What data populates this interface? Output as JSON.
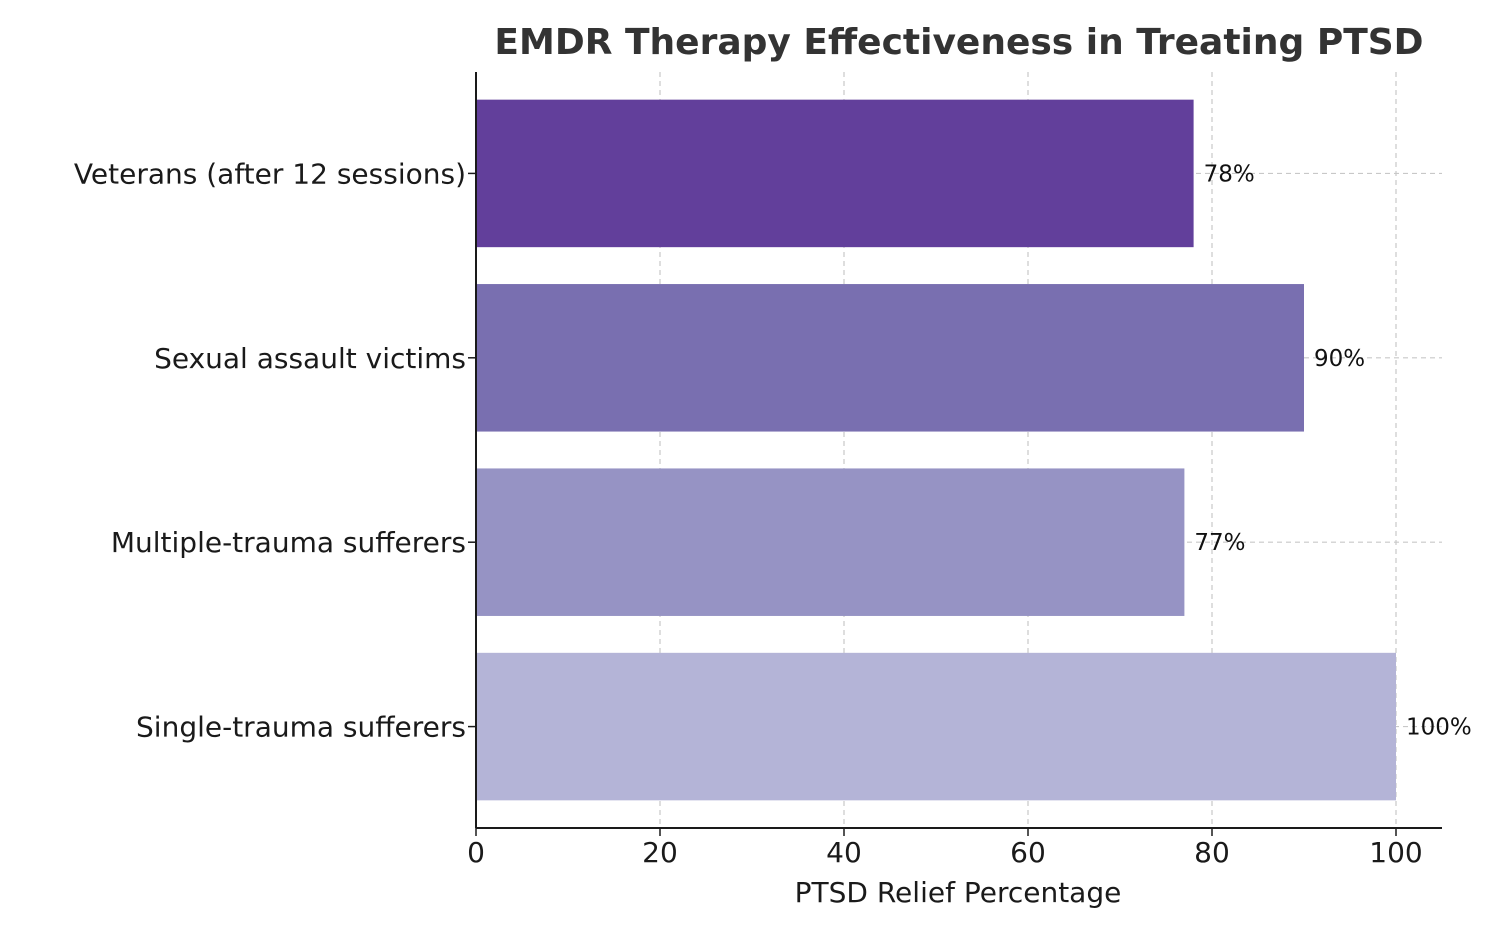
{
  "chart_data": {
    "type": "bar",
    "orientation": "horizontal",
    "title": "EMDR Therapy Effectiveness in Treating PTSD",
    "xlabel": "PTSD Relief Percentage",
    "ylabel": "",
    "xlim": [
      0,
      105
    ],
    "xticks": [
      "0",
      "20",
      "40",
      "60",
      "80",
      "100"
    ],
    "grid": true,
    "categories": [
      "Single-trauma sufferers",
      "Multiple-trauma sufferers",
      "Sexual assault victims",
      "Veterans (after 12 sessions)"
    ],
    "values": [
      100,
      77,
      90,
      78
    ],
    "value_labels": [
      "100%",
      "77%",
      "90%",
      "78%"
    ],
    "colors": [
      "#b4b4d7",
      "#9693c4",
      "#796fb0",
      "#623f9b"
    ]
  }
}
